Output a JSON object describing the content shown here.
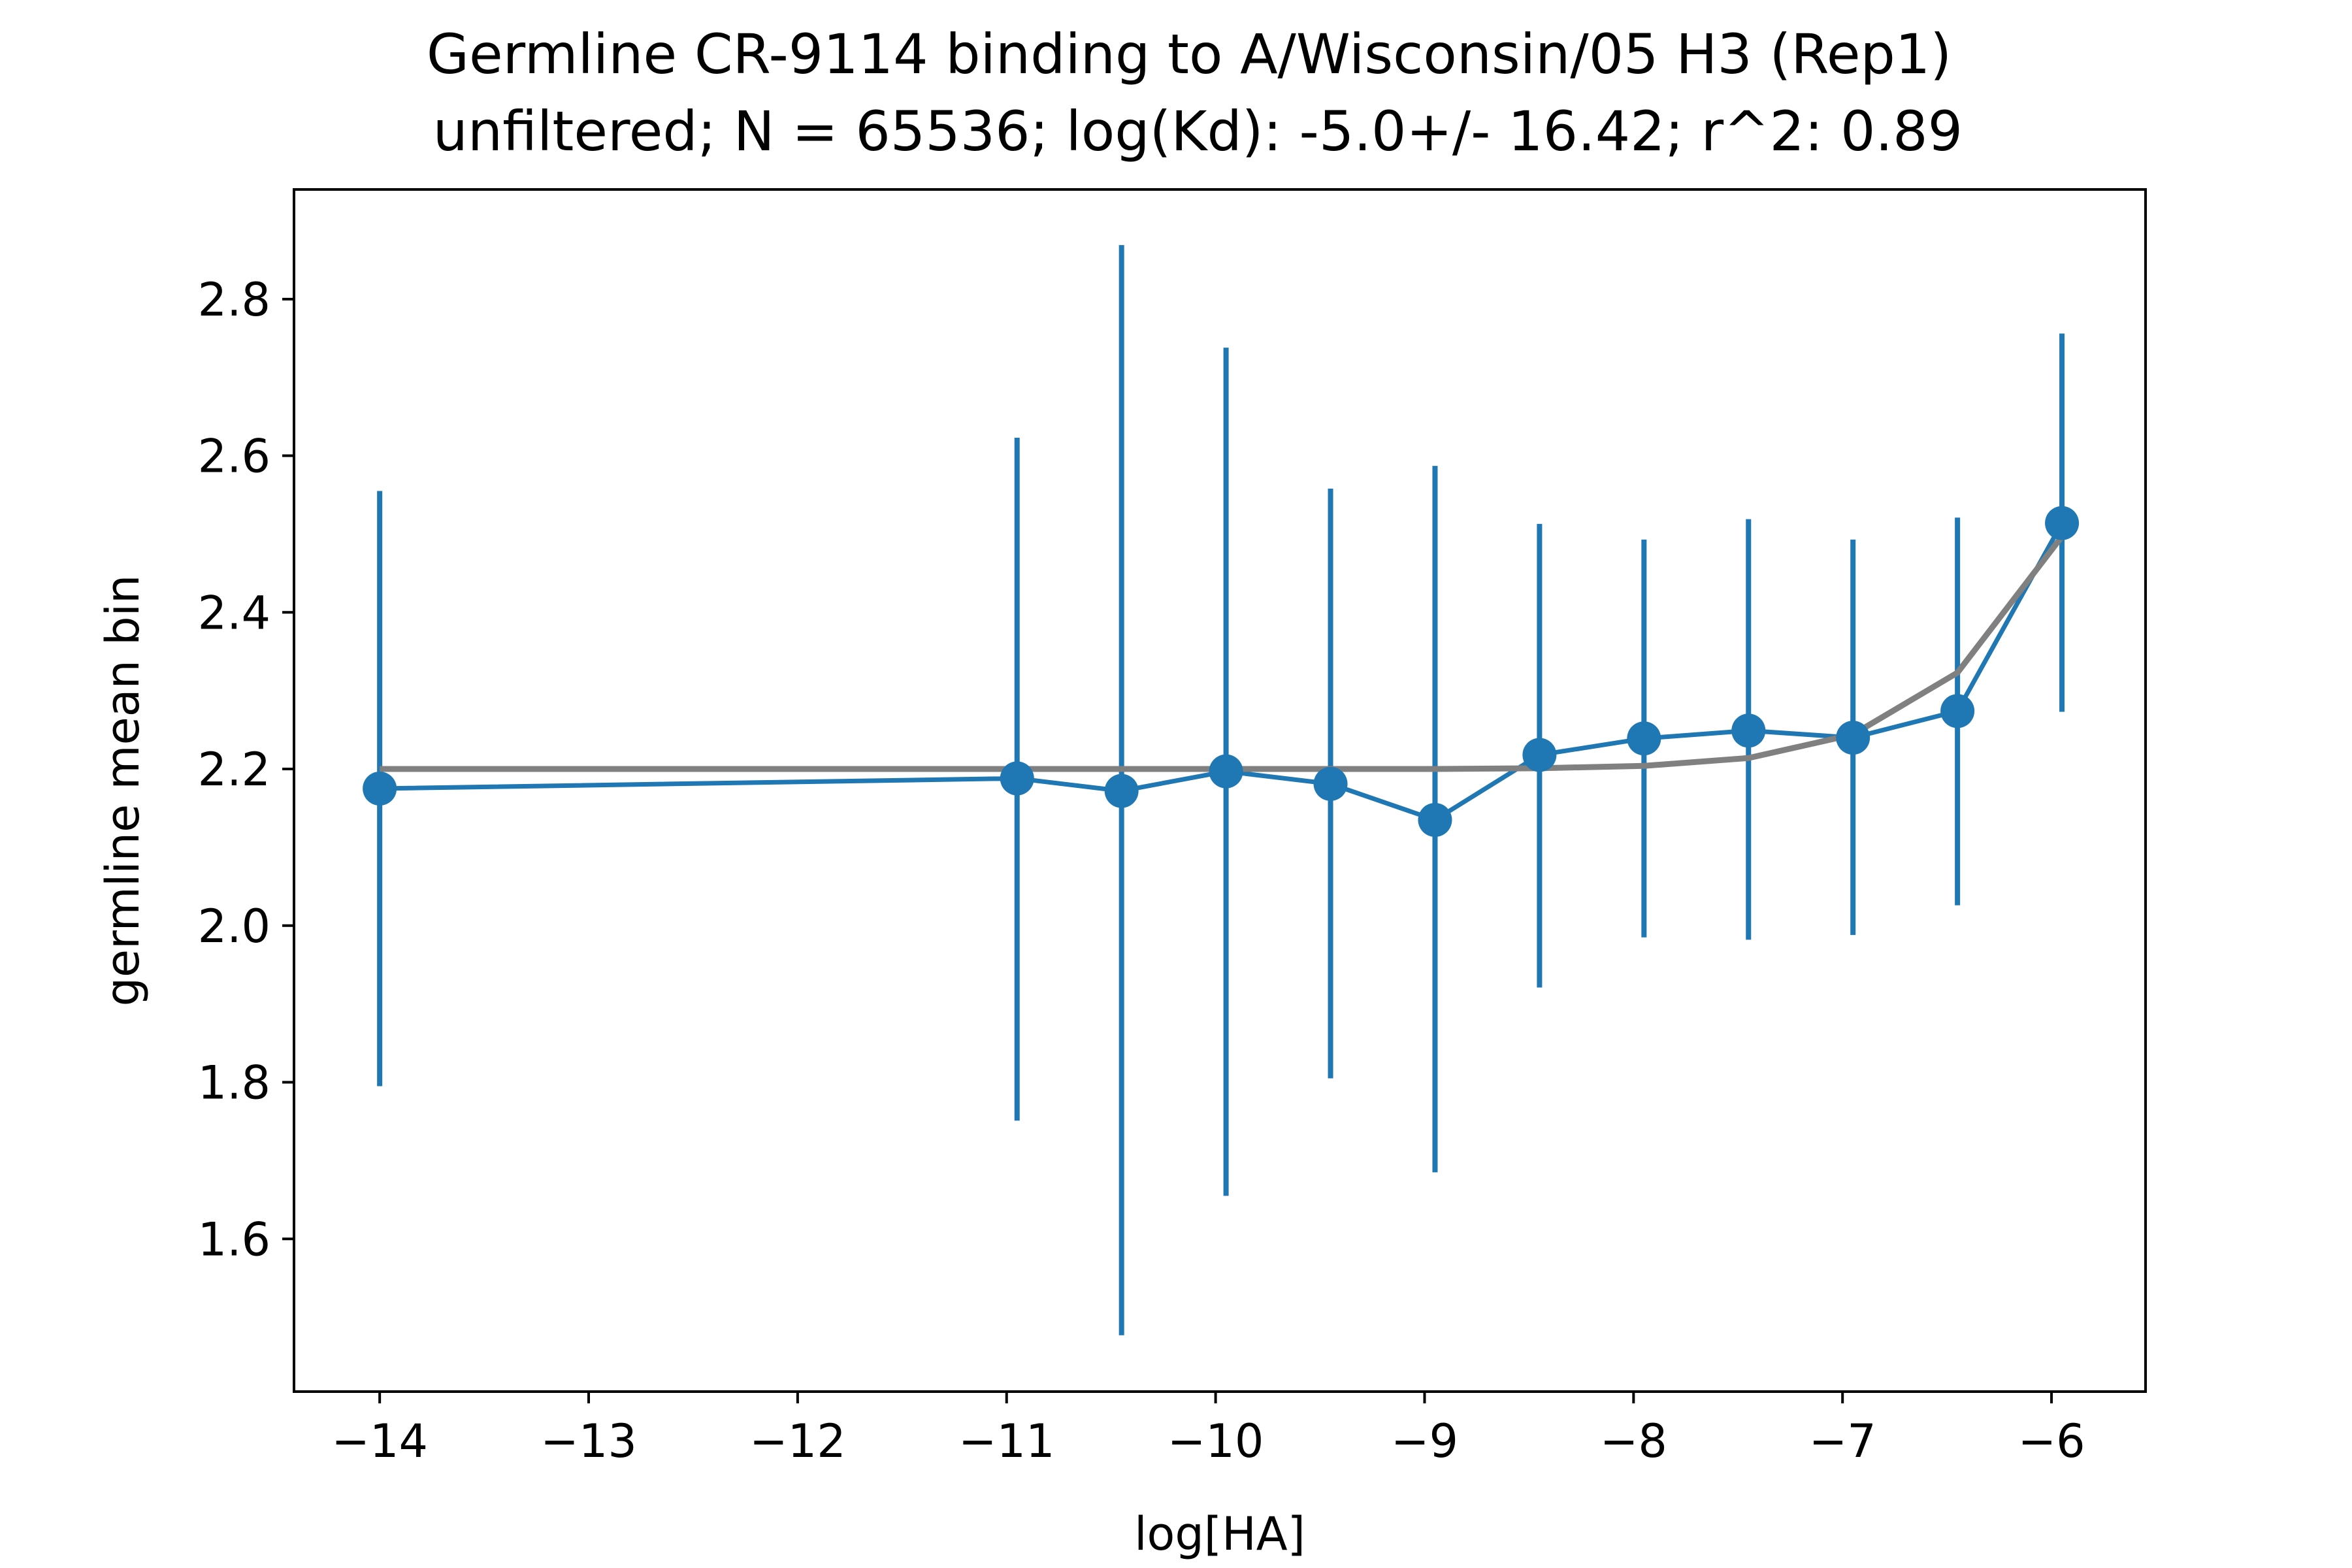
{
  "chart_data": {
    "type": "line",
    "title": "Germline CR-9114 binding to A/Wisconsin/05 H3 (Rep1)",
    "subtitle": " unfiltered; N = 65536; log(Kd): -5.0+/- 16.42; r^2: 0.89",
    "xlabel": "log[HA]",
    "ylabel": "germline mean bin",
    "xlim": [
      -14.41,
      -5.55
    ],
    "ylim": [
      1.405,
      2.94
    ],
    "x_ticks": [
      -14,
      -13,
      -12,
      -11,
      -10,
      -9,
      -8,
      -7,
      -6
    ],
    "x_tick_labels": [
      "−14",
      "−13",
      "−12",
      "−11",
      "−10",
      "−9",
      "−8",
      "−7",
      "−6"
    ],
    "y_ticks": [
      1.6,
      1.8,
      2.0,
      2.2,
      2.4,
      2.6,
      2.8
    ],
    "y_tick_labels": [
      "1.6",
      "1.8",
      "2.0",
      "2.2",
      "2.4",
      "2.6",
      "2.8"
    ],
    "grid": false,
    "series": [
      {
        "kind": "measured",
        "color": "#1f77b4",
        "x": [
          -14.0,
          -10.95,
          -10.45,
          -9.95,
          -9.45,
          -8.95,
          -8.45,
          -7.95,
          -7.45,
          -6.95,
          -6.45,
          -5.95
        ],
        "y": [
          2.175,
          2.188,
          2.172,
          2.197,
          2.181,
          2.135,
          2.218,
          2.239,
          2.249,
          2.24,
          2.274,
          2.514
        ],
        "err_low": [
          1.795,
          1.751,
          1.477,
          1.655,
          1.805,
          1.685,
          1.921,
          1.985,
          1.982,
          1.988,
          2.026,
          2.273
        ],
        "err_high": [
          2.555,
          2.623,
          2.869,
          2.738,
          2.558,
          2.587,
          2.513,
          2.493,
          2.519,
          2.493,
          2.521,
          2.756
        ]
      },
      {
        "kind": "fit",
        "color": "#808080",
        "x": [
          -14.0,
          -10.95,
          -10.45,
          -9.95,
          -9.45,
          -8.95,
          -8.45,
          -7.95,
          -7.45,
          -6.95,
          -6.45,
          -5.95
        ],
        "y": [
          2.2,
          2.2,
          2.2,
          2.2,
          2.2,
          2.2,
          2.201,
          2.204,
          2.214,
          2.244,
          2.323,
          2.497
        ]
      }
    ]
  }
}
